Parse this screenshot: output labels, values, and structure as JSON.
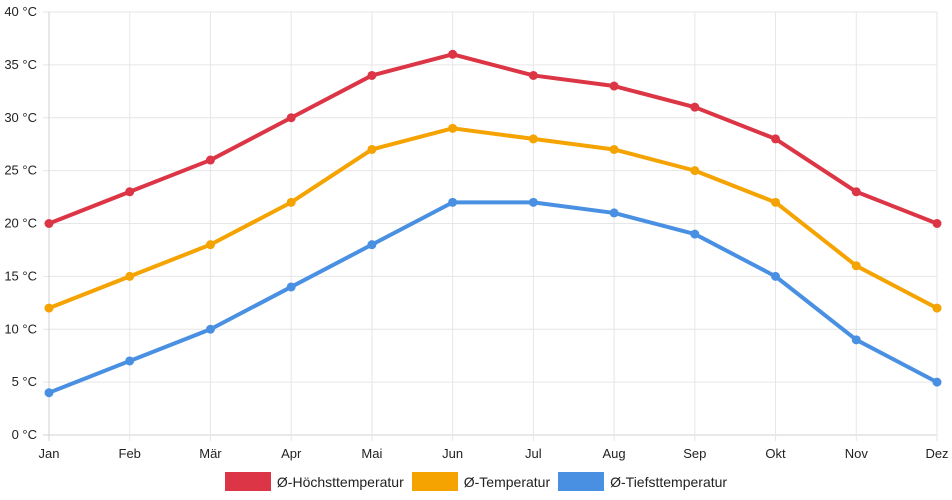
{
  "chart_data": {
    "type": "line",
    "title": "",
    "xlabel": "",
    "ylabel": "",
    "categories": [
      "Jan",
      "Feb",
      "Mär",
      "Apr",
      "Mai",
      "Jun",
      "Jul",
      "Aug",
      "Sep",
      "Okt",
      "Nov",
      "Dez"
    ],
    "ylim": [
      0,
      40
    ],
    "yticks": [
      0,
      5,
      10,
      15,
      20,
      25,
      30,
      35,
      40
    ],
    "yticks_labels": [
      "0 °C",
      "5 °C",
      "10 °C",
      "15 °C",
      "20 °C",
      "25 °C",
      "30 °C",
      "35 °C",
      "40 °C"
    ],
    "unit": "°C",
    "grid": true,
    "legend_position": "bottom-center",
    "series": [
      {
        "name": "Ø-Höchsttemperatur",
        "color": "#dc3545",
        "values": [
          20,
          23,
          26,
          30,
          34,
          36,
          34,
          33,
          31,
          28,
          23,
          20
        ]
      },
      {
        "name": "Ø-Temperatur",
        "color": "#f5a300",
        "values": [
          12,
          15,
          18,
          22,
          27,
          29,
          28,
          27,
          25,
          22,
          16,
          12
        ]
      },
      {
        "name": "Ø-Tiefsttemperatur",
        "color": "#4a90e2",
        "values": [
          4,
          7,
          10,
          14,
          18,
          22,
          22,
          21,
          19,
          15,
          9,
          5
        ]
      }
    ]
  }
}
